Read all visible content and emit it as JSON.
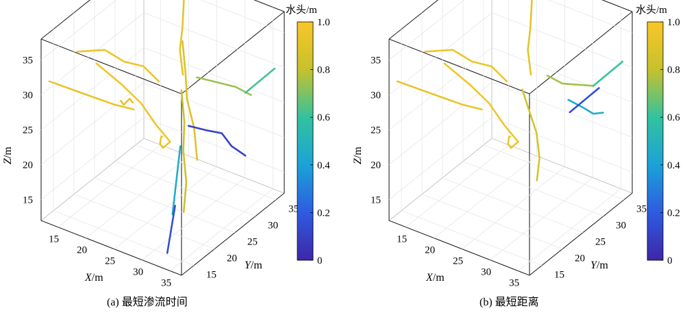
{
  "chart_data": [
    {
      "type": "3d-line-network",
      "caption": "(a)  最短渗流时间",
      "xlabel_var": "X",
      "xlabel_unit": "/m",
      "ylabel_var": "Y",
      "ylabel_unit": "/m",
      "zlabel_var": "Z",
      "zlabel_unit": "/m",
      "x_ticks": [
        "15",
        "20",
        "25",
        "30",
        "35"
      ],
      "y_ticks": [
        "15",
        "20",
        "25",
        "30",
        "35"
      ],
      "z_ticks": [
        "15",
        "20",
        "25",
        "30",
        "35"
      ],
      "xlim": [
        12,
        37
      ],
      "ylim": [
        12,
        37
      ],
      "zlim": [
        12,
        38
      ],
      "grid": true,
      "colorbar": {
        "title": "水头/m",
        "ticks": [
          "0",
          "0.2",
          "0.4",
          "0.6",
          "0.8",
          "1.0"
        ],
        "range": [
          0,
          1.0
        ],
        "colormap": "parula"
      },
      "series": [
        {
          "head": 0.96,
          "points": [
            [
              16,
              36,
              14
            ],
            [
              18,
              33,
              16
            ],
            [
              20,
              30,
              17
            ],
            [
              22,
              28,
              18
            ],
            [
              24,
              27,
              20
            ],
            [
              23,
              25,
              23
            ],
            [
              21,
              24,
              26
            ],
            [
              19,
              22,
              29
            ],
            [
              16,
              20,
              32
            ]
          ]
        },
        {
          "head": 0.95,
          "points": [
            [
              14,
              18,
              34
            ],
            [
              16,
              22,
              33
            ],
            [
              18,
              24,
              31
            ],
            [
              20,
              26,
              30
            ],
            [
              22,
              27,
              28
            ]
          ]
        },
        {
          "head": 0.93,
          "points": [
            [
              12,
              14,
              31
            ],
            [
              14,
              17,
              29
            ],
            [
              16,
              20,
              27
            ],
            [
              17,
              23,
              25
            ],
            [
              19,
              25,
              24
            ]
          ]
        },
        {
          "head": 0.92,
          "points": [
            [
              13,
              30,
              21
            ],
            [
              15,
              28,
              22
            ],
            [
              17,
              26,
              24
            ],
            [
              19,
              24,
              26
            ],
            [
              21,
              22,
              27
            ]
          ]
        },
        {
          "head": 0.92,
          "points": [
            [
              20,
              36,
              37
            ],
            [
              22,
              33,
              36
            ],
            [
              24,
              30,
              35
            ],
            [
              25,
              28,
              33
            ],
            [
              27,
              26,
              31
            ]
          ]
        },
        {
          "head": 0.88,
          "points": [
            [
              24,
              30,
              33
            ],
            [
              26,
              28,
              30
            ],
            [
              27,
              27,
              27
            ],
            [
              29,
              26,
              24
            ],
            [
              31,
              24,
              21
            ]
          ]
        },
        {
          "head": 0.82,
          "points": [
            [
              26,
              27,
              28
            ],
            [
              28,
              25,
              25
            ],
            [
              30,
              22,
              23
            ],
            [
              32,
              20,
              20
            ],
            [
              33,
              18,
              17
            ]
          ]
        },
        {
          "head": 0.74,
          "points": [
            [
              28,
              28,
              30
            ],
            [
              30,
              30,
              29
            ],
            [
              32,
              32,
              28
            ],
            [
              34,
              33,
              27
            ]
          ]
        },
        {
          "head": 0.62,
          "points": [
            [
              33,
              33,
              27
            ],
            [
              34,
              34,
              28
            ],
            [
              35,
              35,
              29
            ],
            [
              36,
              36,
              30
            ]
          ]
        },
        {
          "head": 0.45,
          "points": [
            [
              28,
              24,
              22
            ],
            [
              29,
              22,
              20
            ],
            [
              30,
              20,
              18
            ],
            [
              31,
              18,
              16
            ]
          ]
        },
        {
          "head": 0.1,
          "points": [
            [
              28,
              26,
              24
            ],
            [
              30,
              28,
              23
            ],
            [
              31,
              30,
              22
            ],
            [
              32,
              31,
              20
            ],
            [
              33,
              33,
              18
            ]
          ]
        },
        {
          "head": 0.15,
          "points": [
            [
              30,
              20,
              16
            ],
            [
              31,
              18,
              15
            ],
            [
              32,
              16,
              14
            ],
            [
              33,
              14,
              13
            ]
          ]
        }
      ]
    },
    {
      "type": "3d-line-network",
      "caption": "(b)  最短距离",
      "xlabel_var": "X",
      "xlabel_unit": "/m",
      "ylabel_var": "Y",
      "ylabel_unit": "/m",
      "zlabel_var": "Z",
      "zlabel_unit": "/m",
      "x_ticks": [
        "15",
        "20",
        "25",
        "30",
        "35"
      ],
      "y_ticks": [
        "15",
        "20",
        "25",
        "30",
        "35"
      ],
      "z_ticks": [
        "15",
        "20",
        "25",
        "30",
        "35"
      ],
      "xlim": [
        12,
        37
      ],
      "ylim": [
        12,
        37
      ],
      "zlim": [
        12,
        38
      ],
      "grid": true,
      "colorbar": {
        "title": "水头/m",
        "ticks": [
          "0",
          "0.2",
          "0.4",
          "0.6",
          "0.8",
          "1.0"
        ],
        "range": [
          0,
          1.0
        ],
        "colormap": "parula"
      },
      "series": [
        {
          "head": 0.96,
          "points": [
            [
              16,
              36,
              14
            ],
            [
              18,
              33,
              16
            ],
            [
              20,
              30,
              17
            ],
            [
              22,
              28,
              18
            ],
            [
              24,
              27,
              20
            ],
            [
              23,
              25,
              23
            ],
            [
              21,
              24,
              26
            ],
            [
              19,
              22,
              29
            ],
            [
              16,
              20,
              32
            ]
          ]
        },
        {
          "head": 0.95,
          "points": [
            [
              14,
              18,
              34
            ],
            [
              16,
              22,
              33
            ],
            [
              18,
              24,
              31
            ],
            [
              20,
              26,
              30
            ],
            [
              22,
              27,
              28
            ]
          ]
        },
        {
          "head": 0.93,
          "points": [
            [
              12,
              14,
              31
            ],
            [
              14,
              17,
              29
            ],
            [
              16,
              20,
              27
            ],
            [
              17,
              23,
              25
            ],
            [
              19,
              25,
              24
            ]
          ]
        },
        {
          "head": 0.92,
          "points": [
            [
              20,
              36,
              37
            ],
            [
              22,
              33,
              36
            ],
            [
              24,
              30,
              35
            ],
            [
              25,
              28,
              33
            ],
            [
              27,
              26,
              31
            ]
          ]
        },
        {
          "head": 0.86,
          "points": [
            [
              24,
              28,
              27
            ],
            [
              26,
              27,
              25
            ],
            [
              28,
              26,
              23
            ],
            [
              30,
              24,
              21
            ],
            [
              31,
              22,
              19
            ]
          ]
        },
        {
          "head": 0.75,
          "points": [
            [
              27,
              30,
              29
            ],
            [
              29,
              31,
              28
            ],
            [
              31,
              32,
              28
            ],
            [
              33,
              33,
              28
            ]
          ]
        },
        {
          "head": 0.6,
          "points": [
            [
              33,
              33,
              28
            ],
            [
              34,
              34,
              29
            ],
            [
              35,
              35,
              30
            ],
            [
              36,
              36,
              31
            ]
          ]
        },
        {
          "head": 0.45,
          "points": [
            [
              30,
              31,
              26
            ],
            [
              32,
              32,
              25
            ],
            [
              33,
              33,
              24
            ],
            [
              34,
              34,
              24
            ]
          ]
        },
        {
          "head": 0.15,
          "points": [
            [
              31,
              30,
              25
            ],
            [
              32,
              31,
              26
            ],
            [
              33,
              32,
              27
            ],
            [
              34,
              33,
              28
            ]
          ]
        }
      ]
    }
  ]
}
